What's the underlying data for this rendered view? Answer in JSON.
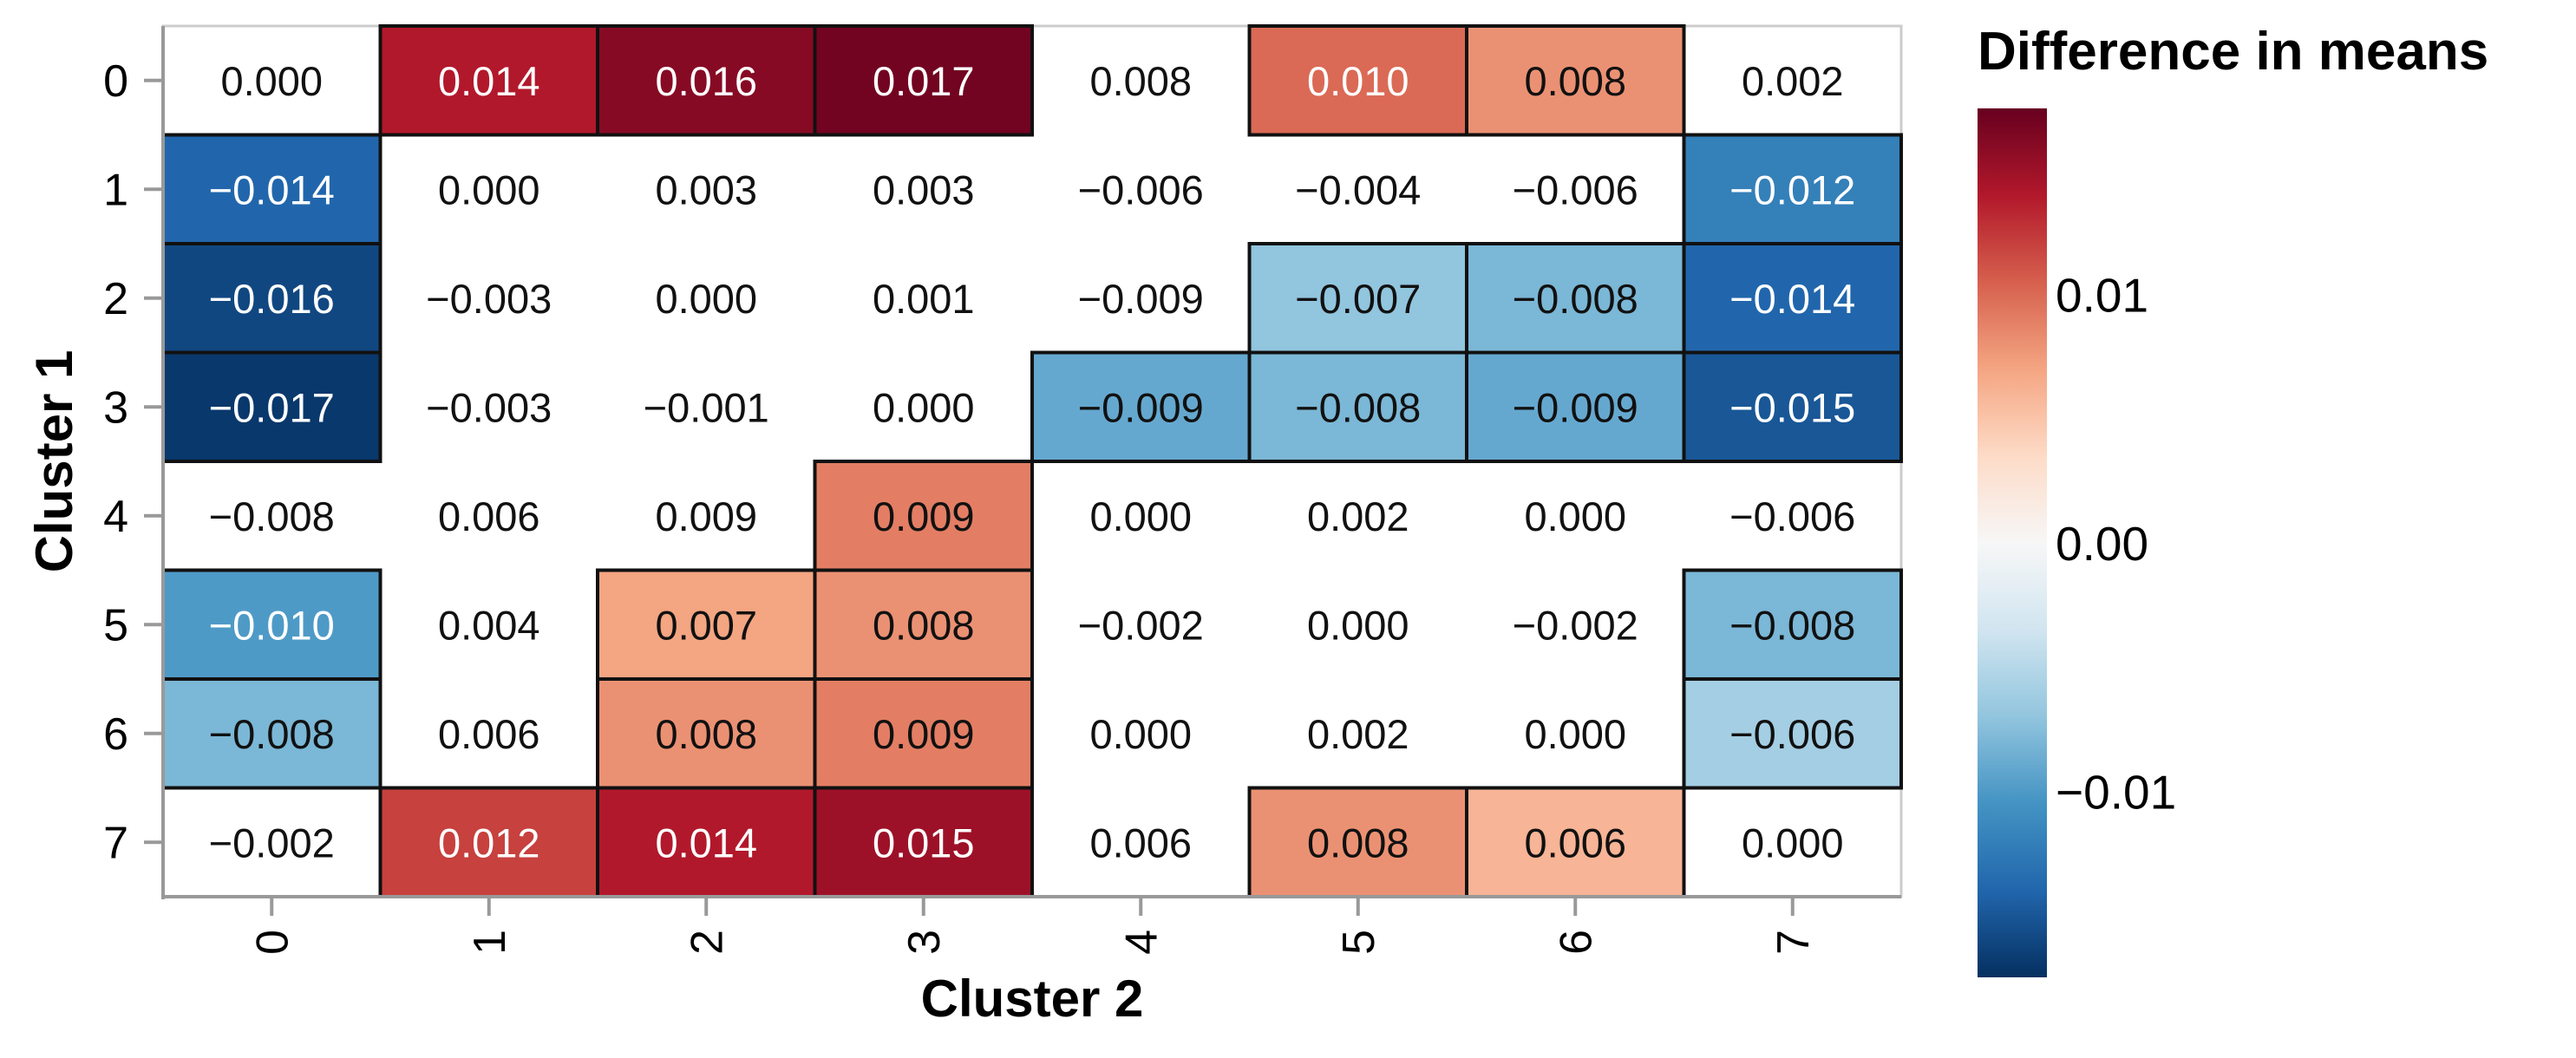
{
  "chart_data": {
    "type": "heatmap",
    "xlabel": "Cluster 2",
    "ylabel": "Cluster 1",
    "x_categories": [
      "0",
      "1",
      "2",
      "3",
      "4",
      "5",
      "6",
      "7"
    ],
    "y_categories": [
      "0",
      "1",
      "2",
      "3",
      "4",
      "5",
      "6",
      "7"
    ],
    "values": [
      [
        0.0,
        0.014,
        0.016,
        0.017,
        0.008,
        0.01,
        0.008,
        0.002
      ],
      [
        -0.014,
        0.0,
        0.003,
        0.003,
        -0.006,
        -0.004,
        -0.006,
        -0.012
      ],
      [
        -0.016,
        -0.003,
        0.0,
        0.001,
        -0.009,
        -0.007,
        -0.008,
        -0.014
      ],
      [
        -0.017,
        -0.003,
        -0.001,
        0.0,
        -0.009,
        -0.008,
        -0.009,
        -0.015
      ],
      [
        -0.008,
        0.006,
        0.009,
        0.009,
        0.0,
        0.002,
        0.0,
        -0.006
      ],
      [
        -0.01,
        0.004,
        0.007,
        0.008,
        -0.002,
        0.0,
        -0.002,
        -0.008
      ],
      [
        -0.008,
        0.006,
        0.008,
        0.009,
        0.0,
        0.002,
        0.0,
        -0.006
      ],
      [
        -0.002,
        0.012,
        0.014,
        0.015,
        0.006,
        0.008,
        0.006,
        0.0
      ]
    ],
    "labels": [
      [
        "0.000",
        "0.014",
        "0.016",
        "0.017",
        "0.008",
        "0.010",
        "0.008",
        "0.002"
      ],
      [
        "−0.014",
        "0.000",
        "0.003",
        "0.003",
        "−0.006",
        "−0.004",
        "−0.006",
        "−0.012"
      ],
      [
        "−0.016",
        "−0.003",
        "0.000",
        "0.001",
        "−0.009",
        "−0.007",
        "−0.008",
        "−0.014"
      ],
      [
        "−0.017",
        "−0.003",
        "−0.001",
        "0.000",
        "−0.009",
        "−0.008",
        "−0.009",
        "−0.015"
      ],
      [
        "−0.008",
        "0.006",
        "0.009",
        "0.009",
        "0.000",
        "0.002",
        "0.000",
        "−0.006"
      ],
      [
        "−0.010",
        "0.004",
        "0.007",
        "0.008",
        "−0.002",
        "0.000",
        "−0.002",
        "−0.008"
      ],
      [
        "−0.008",
        "0.006",
        "0.008",
        "0.009",
        "0.000",
        "0.002",
        "0.000",
        "−0.006"
      ],
      [
        "−0.002",
        "0.012",
        "0.014",
        "0.015",
        "0.006",
        "0.008",
        "0.006",
        "0.000"
      ]
    ],
    "colored": [
      [
        0,
        1,
        1,
        1,
        0,
        1,
        1,
        0
      ],
      [
        1,
        0,
        0,
        0,
        0,
        0,
        0,
        1
      ],
      [
        1,
        0,
        0,
        0,
        0,
        1,
        1,
        1
      ],
      [
        1,
        0,
        0,
        0,
        1,
        1,
        1,
        1
      ],
      [
        0,
        0,
        0,
        1,
        0,
        0,
        0,
        0
      ],
      [
        1,
        0,
        1,
        1,
        0,
        0,
        0,
        1
      ],
      [
        1,
        0,
        1,
        1,
        0,
        0,
        0,
        1
      ],
      [
        0,
        1,
        1,
        1,
        0,
        1,
        1,
        0
      ]
    ],
    "colorbar": {
      "title": "Difference in means",
      "range": [
        -0.0175,
        0.0175
      ],
      "ticks": [
        0.01,
        0.0,
        -0.01
      ],
      "tick_labels": [
        "0.01",
        "0.00",
        "−0.01"
      ],
      "colormap": "RdBu_r"
    },
    "colors": {
      "cell_border": "#111111",
      "axis": "#999999",
      "low": "#0b4d8b",
      "high": "#a10d2a"
    }
  }
}
